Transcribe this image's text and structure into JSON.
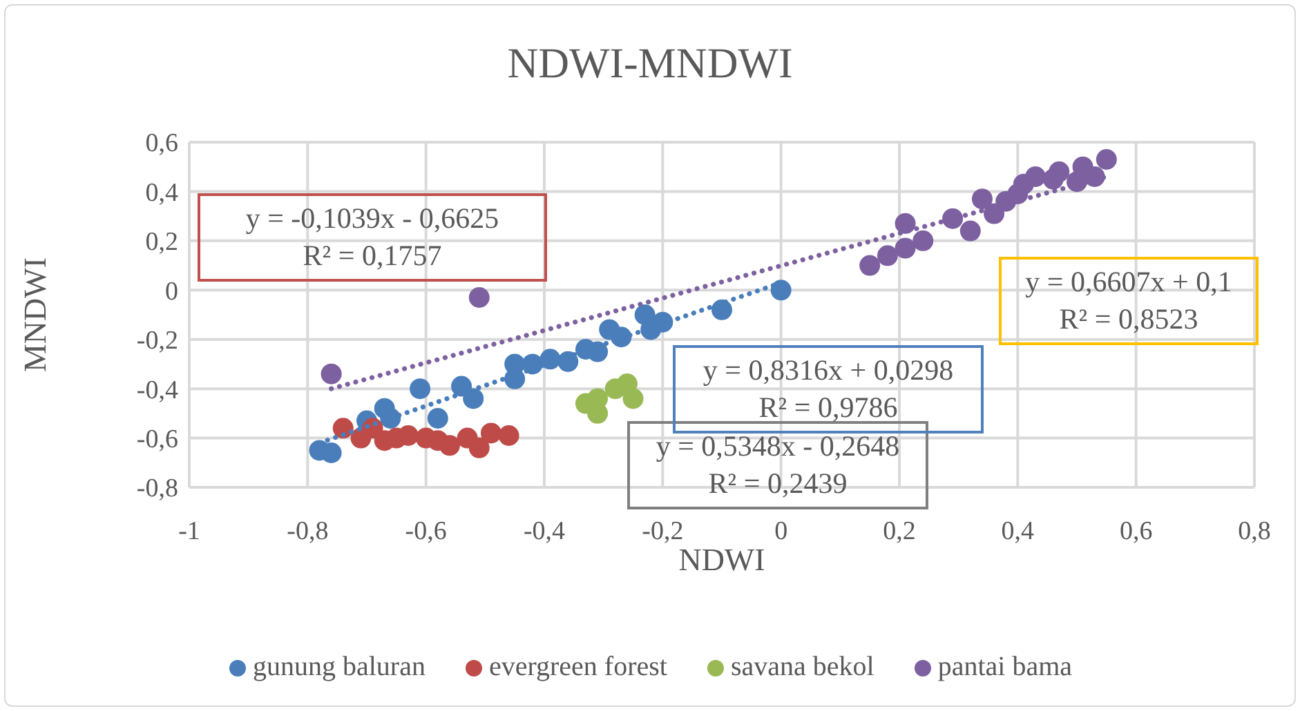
{
  "chart_data": {
    "type": "scatter",
    "title": "NDWI-MNDWI",
    "xlabel": "NDWI",
    "ylabel": "MNDWI",
    "xlim": [
      -1,
      0.8
    ],
    "xticks": [
      -1,
      {
        "value": -0.8,
        "label": "-0,8"
      },
      {
        "value": -0.6,
        "label": "-0,6"
      },
      {
        "value": -0.4,
        "label": "-0,4"
      },
      {
        "value": -0.2,
        "label": "-0,2"
      },
      0,
      {
        "value": 0.2,
        "label": "0,2"
      },
      {
        "value": 0.4,
        "label": "0,4"
      },
      {
        "value": 0.6,
        "label": "0,6"
      },
      {
        "value": 0.8,
        "label": "0,8"
      }
    ],
    "ylim": [
      -0.8,
      0.6
    ],
    "yticks": [
      {
        "value": -0.8,
        "label": "-0,8"
      },
      {
        "value": -0.6,
        "label": "-0,6"
      },
      {
        "value": -0.4,
        "label": "-0,4"
      },
      {
        "value": -0.2,
        "label": "-0,2"
      },
      0,
      {
        "value": 0.2,
        "label": "0,2"
      },
      {
        "value": 0.4,
        "label": "0,4"
      },
      {
        "value": 0.6,
        "label": "0,6"
      }
    ],
    "grid": true,
    "legend": "bottom",
    "marker": "circle",
    "annotations": [
      "y = -0,1039x - 0,6625\nR² = 0,1757",
      "y = 0,5348x - 0,2648\nR² = 0,2439",
      "y = 0,8316x + 0,0298\nR² = 0,9786",
      "y = 0,6607x + 0,1\nR² = 0,8523"
    ],
    "series": [
      {
        "name": "gunung baluran",
        "color": "#4a7ebb",
        "x": [
          -0.78,
          -0.76,
          -0.7,
          -0.67,
          -0.66,
          -0.61,
          -0.58,
          -0.54,
          -0.52,
          -0.45,
          -0.45,
          -0.42,
          -0.39,
          -0.36,
          -0.33,
          -0.31,
          -0.29,
          -0.27,
          -0.23,
          -0.22,
          -0.2,
          -0.1,
          0
        ],
        "values": [
          -0.65,
          -0.66,
          -0.53,
          -0.48,
          -0.52,
          -0.4,
          -0.52,
          -0.39,
          -0.44,
          -0.3,
          -0.36,
          -0.3,
          -0.28,
          -0.29,
          -0.24,
          -0.25,
          -0.16,
          -0.19,
          -0.1,
          -0.16,
          -0.13,
          -0.08,
          0
        ]
      },
      {
        "name": "evergreen forest",
        "color": "#be4b48",
        "x": [
          -0.74,
          -0.71,
          -0.69,
          -0.67,
          -0.65,
          -0.63,
          -0.6,
          -0.58,
          -0.56,
          -0.53,
          -0.51,
          -0.49,
          -0.46
        ],
        "values": [
          -0.56,
          -0.6,
          -0.56,
          -0.61,
          -0.6,
          -0.59,
          -0.6,
          -0.61,
          -0.63,
          -0.6,
          -0.64,
          -0.58,
          -0.59
        ]
      },
      {
        "name": "savana bekol",
        "color": "#98b954",
        "x": [
          -0.33,
          -0.31,
          -0.31,
          -0.28,
          -0.26,
          -0.25
        ],
        "values": [
          -0.46,
          -0.5,
          -0.44,
          -0.4,
          -0.38,
          -0.44
        ]
      },
      {
        "name": "pantai bama",
        "color": "#7d60a0",
        "x": [
          -0.76,
          -0.51,
          0.15,
          0.18,
          0.21,
          0.21,
          0.24,
          0.29,
          0.32,
          0.34,
          0.36,
          0.38,
          0.4,
          0.41,
          0.43,
          0.46,
          0.47,
          0.5,
          0.51,
          0.53,
          0.55
        ],
        "values": [
          -0.34,
          -0.03,
          0.1,
          0.14,
          0.17,
          0.27,
          0.2,
          0.29,
          0.24,
          0.37,
          0.31,
          0.36,
          0.39,
          0.43,
          0.46,
          0.45,
          0.48,
          0.44,
          0.5,
          0.46,
          0.53
        ]
      },
      {
        "type": "line",
        "color": "#4a7ebb",
        "line_style": "dotted",
        "marker": "none",
        "x": [
          -0.78,
          0
        ],
        "values": [
          -0.62,
          0.03
        ]
      },
      {
        "type": "line",
        "color": "#7d60a0",
        "line_style": "dotted",
        "marker": "none",
        "x": [
          -0.76,
          0.55
        ],
        "values": [
          -0.4,
          0.46
        ]
      }
    ]
  }
}
